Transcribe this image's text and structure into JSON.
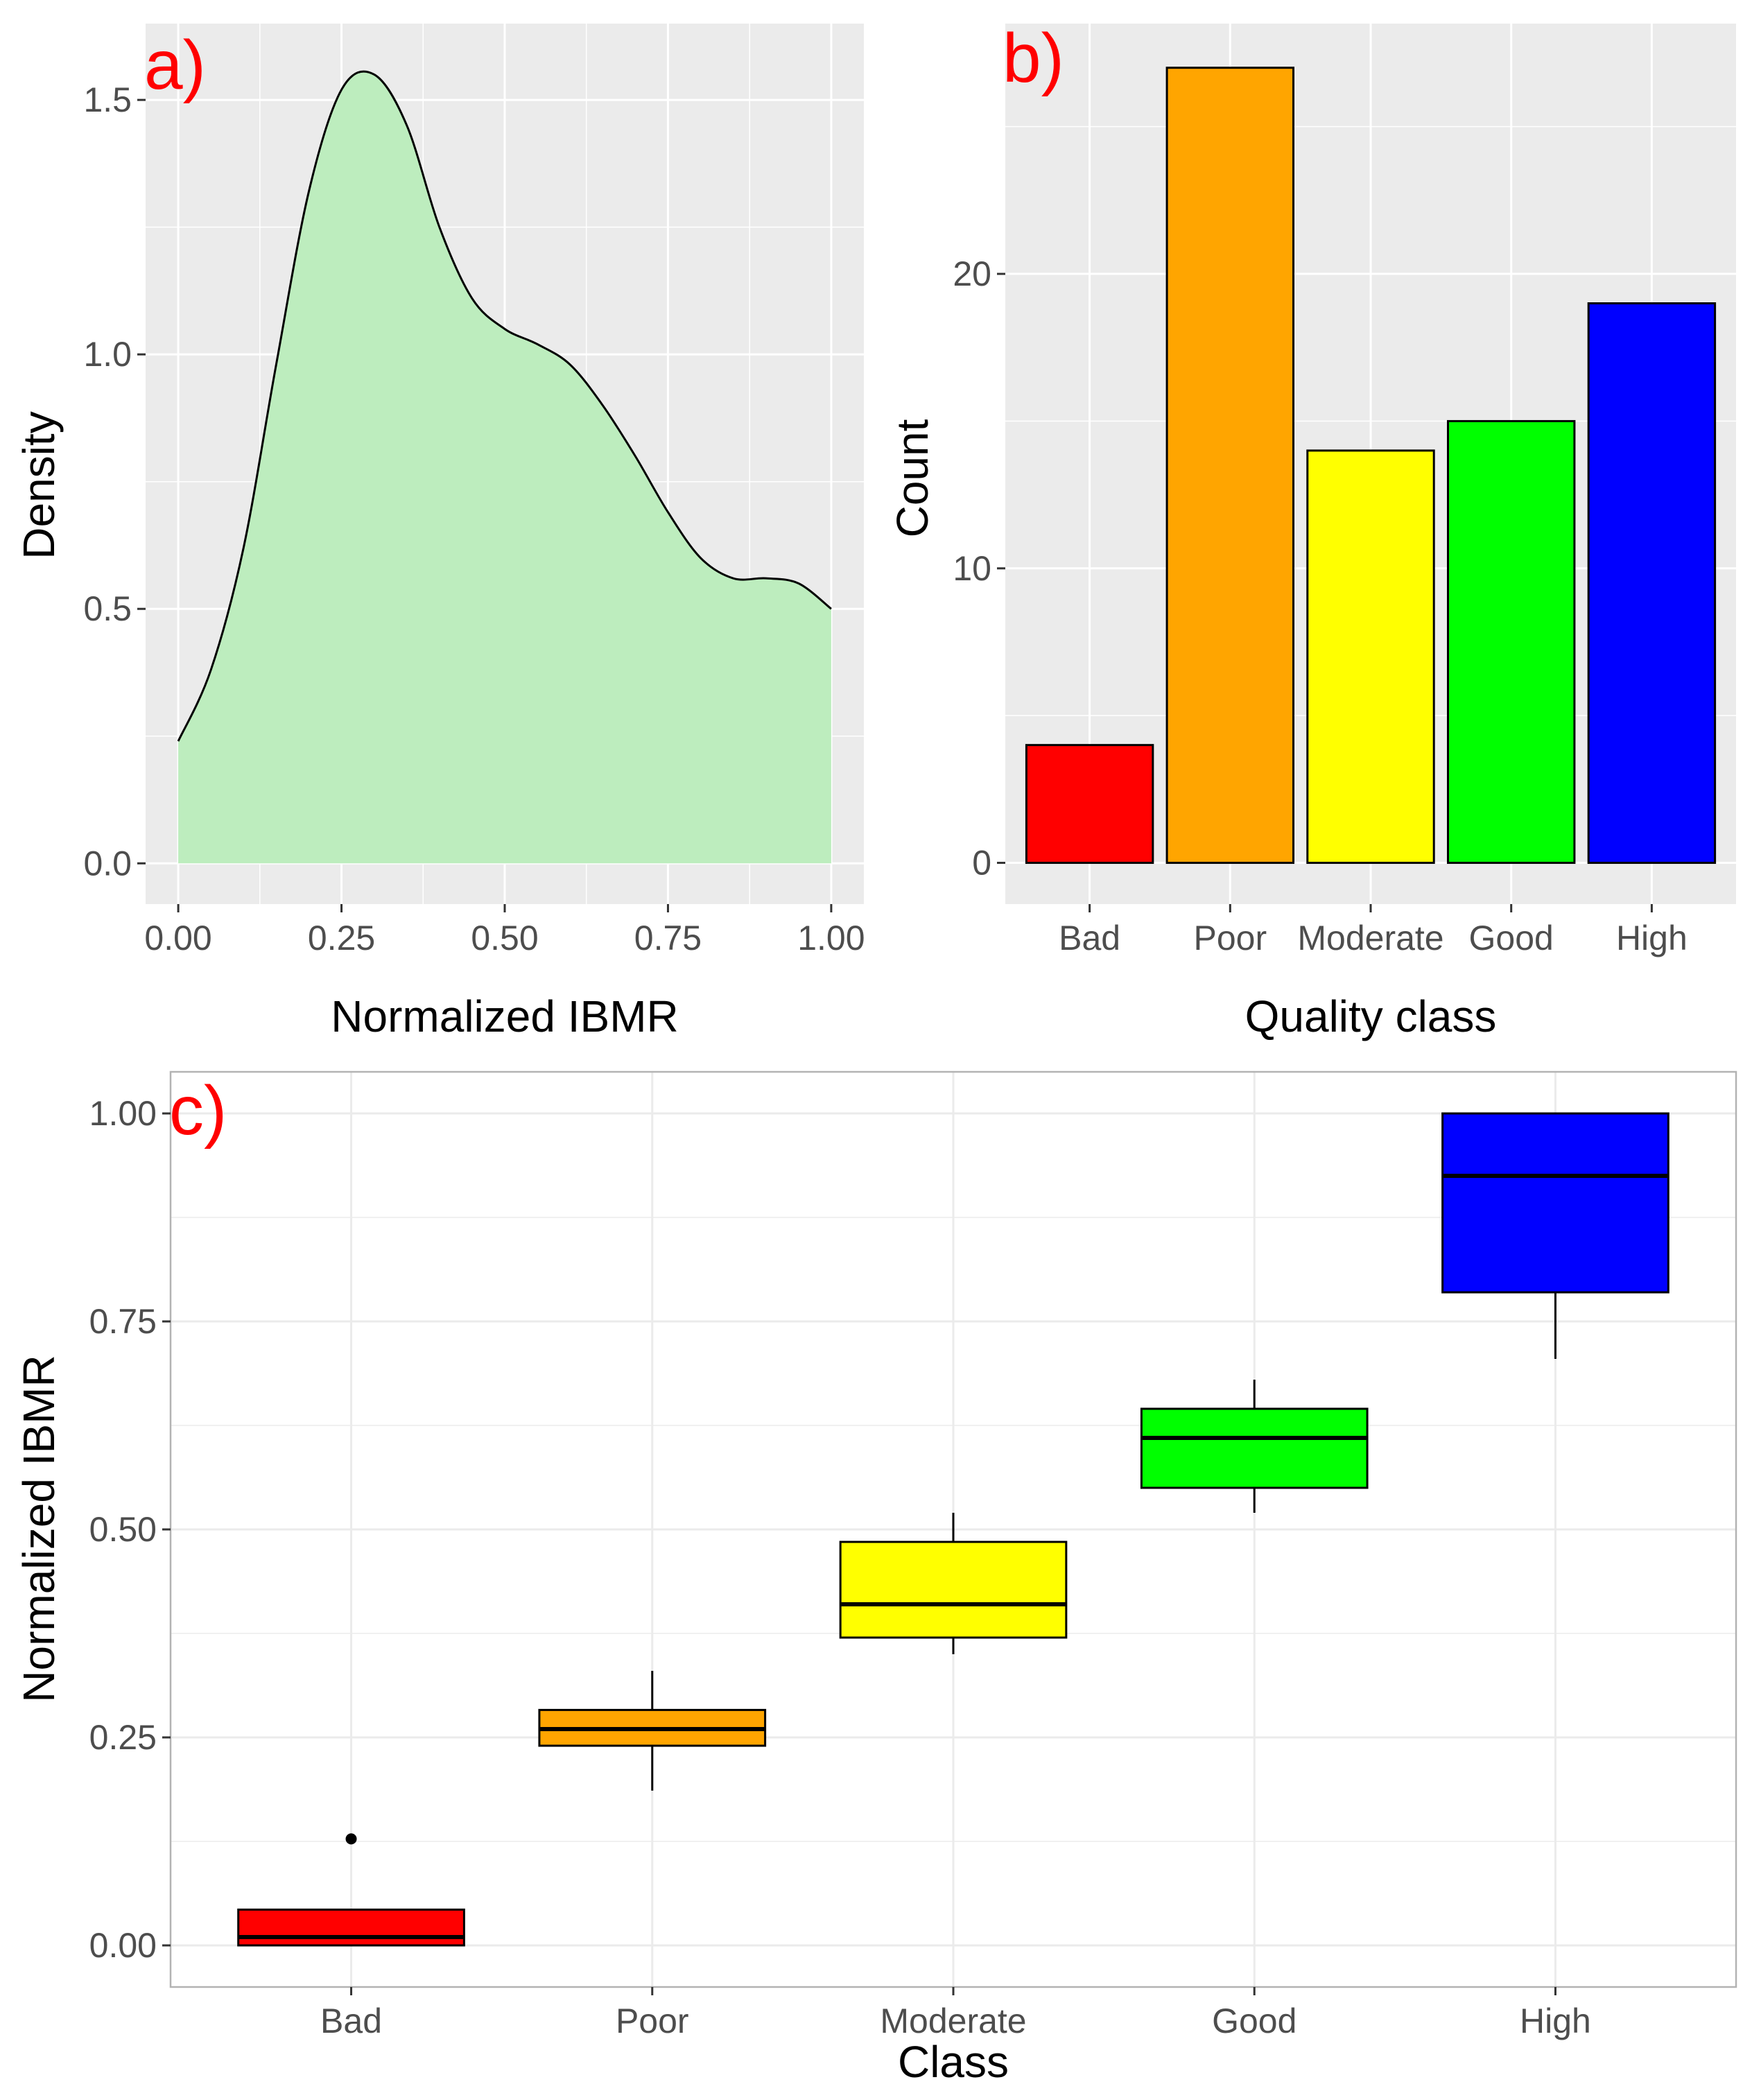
{
  "chart_data": [
    {
      "panel": "a)",
      "type": "area",
      "xlabel": "Normalized IBMR",
      "ylabel": "Density",
      "xlim": [
        -0.05,
        1.05
      ],
      "ylim": [
        -0.08,
        1.65
      ],
      "xticks": [
        0,
        0.25,
        0.5,
        0.75,
        1
      ],
      "xtick_labels": [
        "0.00",
        "0.25",
        "0.50",
        "0.75",
        "1.00"
      ],
      "yticks": [
        0,
        0.5,
        1,
        1.5
      ],
      "ytick_labels": [
        "0.0",
        "0.5",
        "1.0",
        "1.5"
      ],
      "x": [
        0,
        0.05,
        0.1,
        0.15,
        0.2,
        0.25,
        0.3,
        0.35,
        0.4,
        0.45,
        0.5,
        0.55,
        0.6,
        0.65,
        0.7,
        0.75,
        0.8,
        0.85,
        0.9,
        0.95,
        1.0
      ],
      "y": [
        0.24,
        0.38,
        0.62,
        0.98,
        1.32,
        1.52,
        1.55,
        1.45,
        1.25,
        1.11,
        1.05,
        1.02,
        0.98,
        0.9,
        0.8,
        0.69,
        0.6,
        0.56,
        0.56,
        0.55,
        0.5
      ],
      "fill_color": "#bdedbe",
      "panel_background": "#ebebeb",
      "gridline_color": "#ffffff"
    },
    {
      "panel": "b)",
      "type": "bar",
      "xlabel": "Quality class",
      "ylabel": "Count",
      "categories": [
        "Bad",
        "Poor",
        "Moderate",
        "Good",
        "High"
      ],
      "values": [
        4,
        27,
        14,
        15,
        19
      ],
      "colors": [
        "#ff0000",
        "#ffa500",
        "#ffff00",
        "#00ff00",
        "#0000ff"
      ],
      "ylim": [
        -1.4,
        28.5
      ],
      "yticks": [
        0,
        10,
        20
      ],
      "ytick_labels": [
        "0",
        "10",
        "20"
      ],
      "panel_background": "#ebebeb"
    },
    {
      "panel": "c)",
      "type": "box",
      "xlabel": "Class",
      "ylabel": "Normalized IBMR",
      "categories": [
        "Bad",
        "Poor",
        "Moderate",
        "Good",
        "High"
      ],
      "colors": [
        "#ff0000",
        "#ffa500",
        "#ffff00",
        "#00ff00",
        "#0000ff"
      ],
      "boxes": [
        {
          "min": 0.0,
          "q1": 0.0,
          "median": 0.01,
          "q3": 0.043,
          "max": 0.043,
          "outliers": [
            0.128
          ]
        },
        {
          "min": 0.186,
          "q1": 0.24,
          "median": 0.26,
          "q3": 0.283,
          "max": 0.33,
          "outliers": []
        },
        {
          "min": 0.35,
          "q1": 0.37,
          "median": 0.41,
          "q3": 0.485,
          "max": 0.52,
          "outliers": []
        },
        {
          "min": 0.52,
          "q1": 0.55,
          "median": 0.61,
          "q3": 0.645,
          "max": 0.68,
          "outliers": []
        },
        {
          "min": 0.705,
          "q1": 0.785,
          "median": 0.925,
          "q3": 1.0,
          "max": 1.0,
          "outliers": []
        }
      ],
      "ylim": [
        -0.05,
        1.05
      ],
      "yticks": [
        0,
        0.25,
        0.5,
        0.75,
        1
      ],
      "ytick_labels": [
        "0.00",
        "0.25",
        "0.50",
        "0.75",
        "1.00"
      ],
      "panel_background": "#ffffff",
      "gridline_color": "#ebebeb"
    }
  ]
}
